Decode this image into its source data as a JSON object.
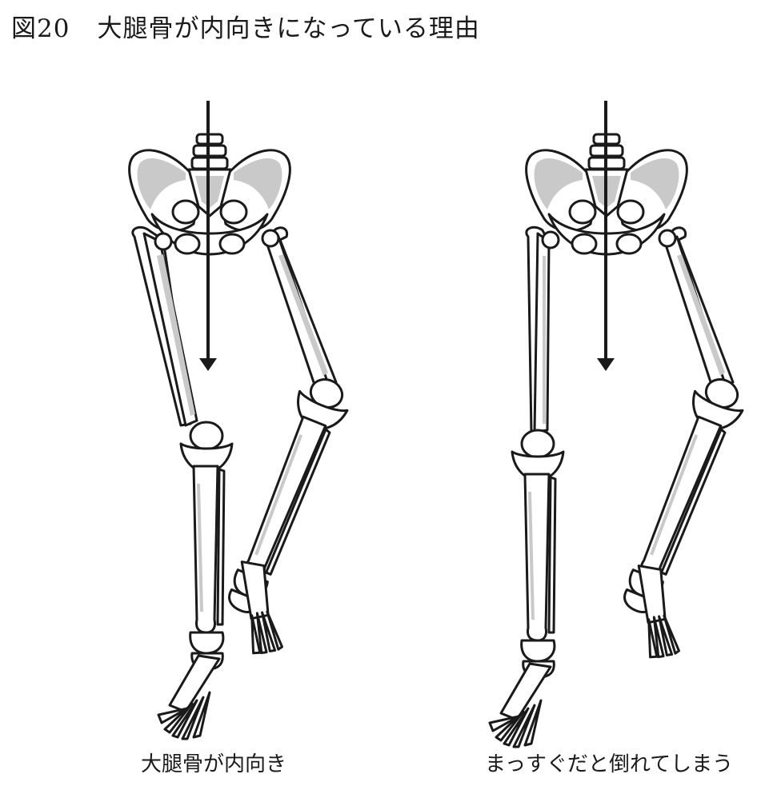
{
  "title": {
    "figure_number": "図20",
    "text": "大腿骨が内向きになっている理由"
  },
  "left_panel": {
    "caption": "大腿骨が内向き"
  },
  "right_panel": {
    "caption": "まっすぐだと倒れてしまう"
  }
}
